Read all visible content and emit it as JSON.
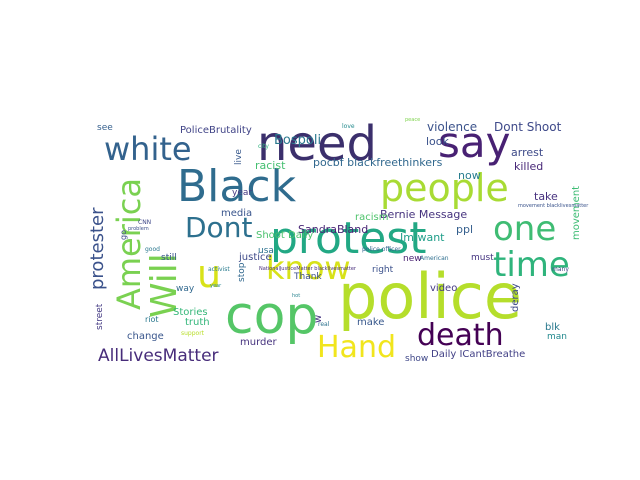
{
  "word_cloud": {
    "words": [
      {
        "text": "police",
        "color": "#b5de2b"
      },
      {
        "text": "need",
        "color": "#3b2f6c"
      },
      {
        "text": "Black",
        "color": "#2f6c8e"
      },
      {
        "text": "cop",
        "color": "#55c667"
      },
      {
        "text": "say",
        "color": "#482173"
      },
      {
        "text": "people",
        "color": "#a8db34"
      },
      {
        "text": "white",
        "color": "#33628d"
      },
      {
        "text": "protest",
        "color": "#22a884"
      },
      {
        "text": "Dont",
        "color": "#2d708e"
      },
      {
        "text": "know",
        "color": "#d8e219"
      },
      {
        "text": "u",
        "color": "#d8e219"
      },
      {
        "text": "one",
        "color": "#3fbc73"
      },
      {
        "text": "time",
        "color": "#2fb47c"
      },
      {
        "text": "death",
        "color": "#440154"
      },
      {
        "text": "Hand",
        "color": "#f1e51d"
      },
      {
        "text": "America",
        "color": "#7ad151"
      },
      {
        "text": "Will",
        "color": "#7ad151"
      },
      {
        "text": "protester",
        "color": "#3b528b"
      },
      {
        "text": "AllLivesMatter",
        "color": "#472c7a"
      },
      {
        "text": "PoliceBrutality",
        "color": "#414487"
      },
      {
        "text": "Bospoli",
        "color": "#2a788e"
      },
      {
        "text": "violence",
        "color": "#3b528b"
      },
      {
        "text": "Dont Shoot",
        "color": "#3e4989"
      },
      {
        "text": "pocbf blackfreethinkers",
        "color": "#31688e"
      },
      {
        "text": "Bernie Message",
        "color": "#46337e"
      },
      {
        "text": "racist",
        "color": "#44bf70"
      },
      {
        "text": "now",
        "color": "#287d8e"
      },
      {
        "text": "killed",
        "color": "#482878"
      },
      {
        "text": "arrest",
        "color": "#3e4a89"
      },
      {
        "text": "look",
        "color": "#3b528b"
      },
      {
        "text": "SandraBland",
        "color": "#482576"
      },
      {
        "text": "Shoot Daily",
        "color": "#4ac16d"
      },
      {
        "text": "Im want",
        "color": "#1f9e89"
      },
      {
        "text": "ppl",
        "color": "#355f8d"
      },
      {
        "text": "take",
        "color": "#46307e"
      },
      {
        "text": "movement",
        "color": "#3dbc74"
      },
      {
        "text": "justice",
        "color": "#3e4a89"
      },
      {
        "text": "media",
        "color": "#39558c"
      },
      {
        "text": "Stories",
        "color": "#35b779"
      },
      {
        "text": "truth",
        "color": "#32b67a"
      },
      {
        "text": "murder",
        "color": "#46337e"
      },
      {
        "text": "change",
        "color": "#39568c"
      },
      {
        "text": "street",
        "color": "#443a83"
      },
      {
        "text": "riot",
        "color": "#2a788e"
      },
      {
        "text": "make",
        "color": "#38588c"
      },
      {
        "text": "video",
        "color": "#443983"
      },
      {
        "text": "deray",
        "color": "#3e4a89"
      },
      {
        "text": "blk",
        "color": "#29798e"
      },
      {
        "text": "man",
        "color": "#23898e"
      },
      {
        "text": "show",
        "color": "#3f4788"
      },
      {
        "text": "Daily ICantBreathe",
        "color": "#424086"
      },
      {
        "text": "right",
        "color": "#3b518b"
      },
      {
        "text": "must",
        "color": "#453581"
      },
      {
        "text": "stop",
        "color": "#31688e"
      },
      {
        "text": "Thank",
        "color": "#3c4f8a"
      },
      {
        "text": "usa",
        "color": "#2c718e"
      },
      {
        "text": "racism",
        "color": "#4ec36b"
      },
      {
        "text": "year",
        "color": "#453882"
      },
      {
        "text": "live",
        "color": "#38598c"
      },
      {
        "text": "still",
        "color": "#3a548c"
      },
      {
        "text": "see",
        "color": "#355f8d"
      },
      {
        "text": "go",
        "color": "#3e4c8a"
      },
      {
        "text": "way",
        "color": "#31688e"
      },
      {
        "text": "new",
        "color": "#481f70"
      },
      {
        "text": "real",
        "color": "#2c728e"
      },
      {
        "text": "many",
        "color": "#3f4788"
      },
      {
        "text": "good",
        "color": "#2a788e"
      },
      {
        "text": "activist",
        "color": "#297b8e"
      },
      {
        "text": "support",
        "color": "#b8de29"
      },
      {
        "text": "police officer",
        "color": "#32648e"
      },
      {
        "text": "American",
        "color": "#2e6e8e"
      },
      {
        "text": "CNN",
        "color": "#3f4889"
      },
      {
        "text": "city",
        "color": "#2db27d"
      },
      {
        "text": "love",
        "color": "#238a8d"
      },
      {
        "text": "w",
        "color": "#463480"
      },
      {
        "text": "hot",
        "color": "#26828e"
      },
      {
        "text": "year",
        "color": "#25848e"
      },
      {
        "text": "problem",
        "color": "#3c508b"
      },
      {
        "text": "NationalJusticeMatter blacklivesmatter",
        "color": "#472d7b"
      },
      {
        "text": "movement blacklivesmatter",
        "color": "#3a538b"
      },
      {
        "text": "peace",
        "color": "#7fd34e"
      }
    ]
  }
}
